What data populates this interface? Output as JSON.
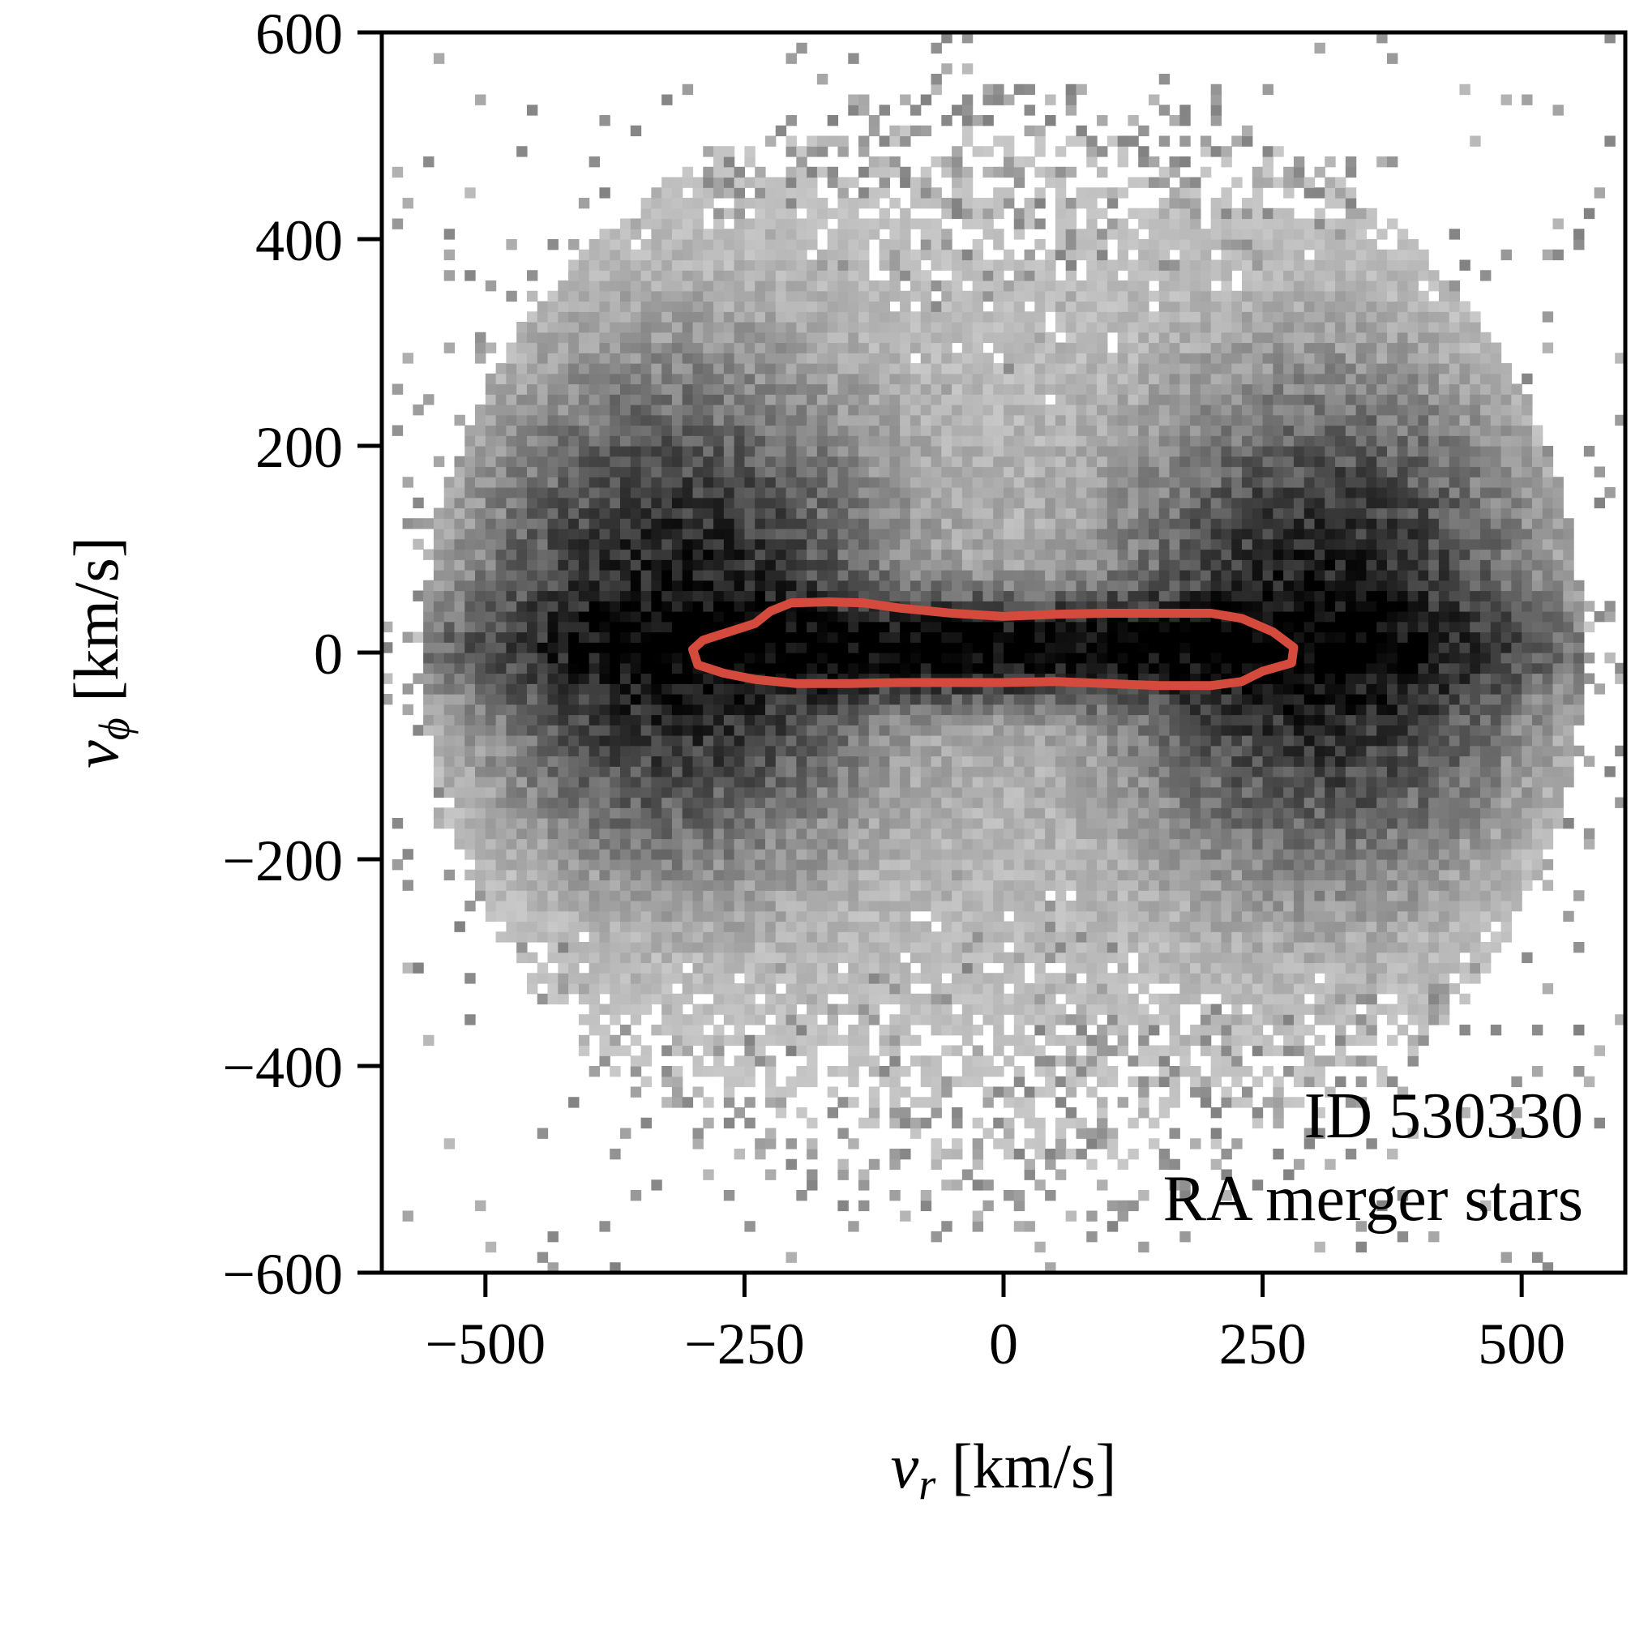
{
  "chart_data": {
    "type": "heatmap",
    "xlim": [
      -600,
      600
    ],
    "ylim": [
      -600,
      600
    ],
    "x_ticks": [
      -500,
      -250,
      0,
      250,
      500
    ],
    "x_tick_labels": [
      "−500",
      "−250",
      "0",
      "250",
      "500"
    ],
    "y_ticks": [
      -600,
      -400,
      -200,
      0,
      200,
      400,
      600
    ],
    "y_tick_labels": [
      "−600",
      "−400",
      "−200",
      "0",
      "200",
      "400",
      "600"
    ],
    "xlabel": {
      "main": "v",
      "sub": "r",
      "unit": " [km/s]"
    },
    "ylabel": {
      "main": "v",
      "sub": "ϕ",
      "unit": " [km/s]"
    },
    "annotation_lines": [
      "ID 530330",
      "RA merger stars"
    ],
    "colormap": "greys",
    "contour": {
      "color": "#d44a3c",
      "points": [
        [
          -300,
          3
        ],
        [
          -290,
          12
        ],
        [
          -265,
          20
        ],
        [
          -240,
          28
        ],
        [
          -225,
          40
        ],
        [
          -205,
          48
        ],
        [
          -170,
          49
        ],
        [
          -135,
          48
        ],
        [
          -100,
          43
        ],
        [
          -50,
          38
        ],
        [
          0,
          35
        ],
        [
          50,
          37
        ],
        [
          100,
          38
        ],
        [
          150,
          38
        ],
        [
          200,
          38
        ],
        [
          230,
          33
        ],
        [
          260,
          20
        ],
        [
          280,
          5
        ],
        [
          278,
          -10
        ],
        [
          250,
          -18
        ],
        [
          230,
          -28
        ],
        [
          200,
          -32
        ],
        [
          150,
          -32
        ],
        [
          100,
          -30
        ],
        [
          50,
          -28
        ],
        [
          0,
          -29
        ],
        [
          -50,
          -29
        ],
        [
          -100,
          -29
        ],
        [
          -150,
          -30
        ],
        [
          -200,
          -30
        ],
        [
          -240,
          -26
        ],
        [
          -270,
          -20
        ],
        [
          -295,
          -12
        ]
      ]
    }
  }
}
